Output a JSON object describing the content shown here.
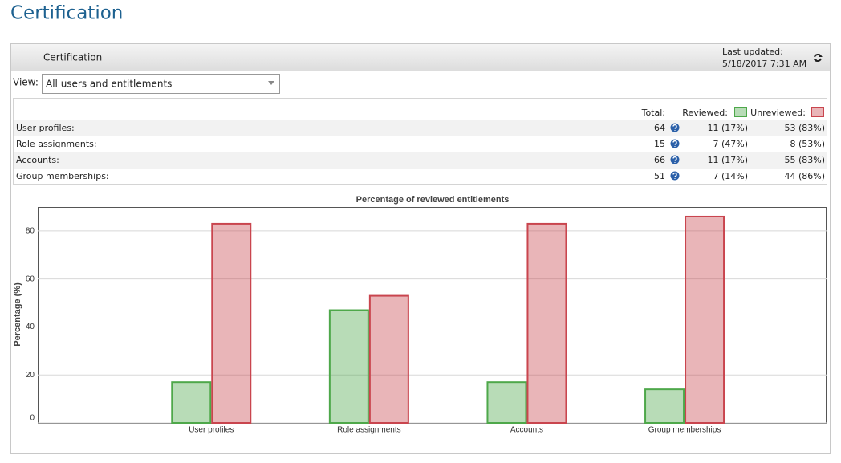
{
  "page": {
    "title": "Certification"
  },
  "panel": {
    "title": "Certification",
    "last_updated_label": "Last updated:",
    "last_updated": "5/18/2017 7:31 AM"
  },
  "view": {
    "label": "View:",
    "selected": "All users and entitlements"
  },
  "table": {
    "total_header": "Total:",
    "rows": [
      [
        "User profiles:",
        64,
        "11 (17%)",
        "53 (83%)"
      ],
      [
        "Role assignments:",
        15,
        "7 (47%)",
        "8 (53%)"
      ],
      [
        "Accounts:",
        66,
        "11 (17%)",
        "55 (83%)"
      ],
      [
        "Group memberships:",
        51,
        "7 (14%)",
        "44 (86%)"
      ]
    ]
  },
  "chart_data": {
    "type": "bar",
    "title": "Percentage of reviewed entitlements",
    "y_label": "Percentage (%)",
    "categories": [
      "User profiles",
      "Role assignments",
      "Accounts",
      "Group memberships"
    ],
    "series": [
      {
        "name": "Reviewed:",
        "color": "#4ea84a",
        "values": [
          17,
          47,
          17,
          14
        ]
      },
      {
        "name": "Unreviewed:",
        "color": "#c9454e",
        "values": [
          83,
          53,
          83,
          86
        ]
      }
    ],
    "ylim": [
      0,
      90
    ],
    "yticks": [
      0,
      20,
      40,
      60,
      80
    ],
    "grid": true
  }
}
